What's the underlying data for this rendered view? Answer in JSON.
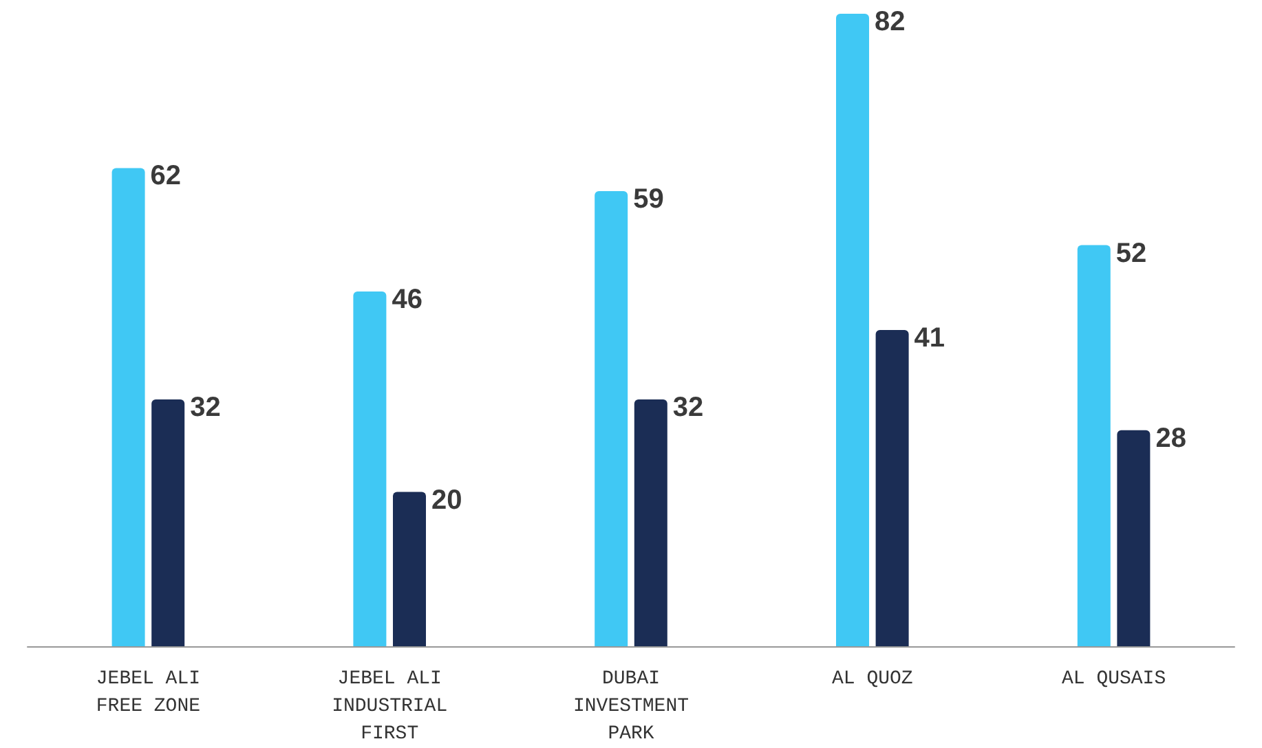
{
  "chart_data": {
    "type": "bar",
    "categories": [
      "JEBEL ALI\nFREE ZONE",
      "JEBEL ALI\nINDUSTRIAL\nFIRST",
      "DUBAI\nINVESTMENT\nPARK",
      "AL QUOZ",
      "AL QUSAIS"
    ],
    "series": [
      {
        "color": "#40c8f4",
        "values": [
          62,
          46,
          59,
          82,
          52
        ]
      },
      {
        "color": "#1b2d55",
        "values": [
          32,
          20,
          32,
          41,
          28
        ]
      }
    ],
    "data_labels": true
  }
}
